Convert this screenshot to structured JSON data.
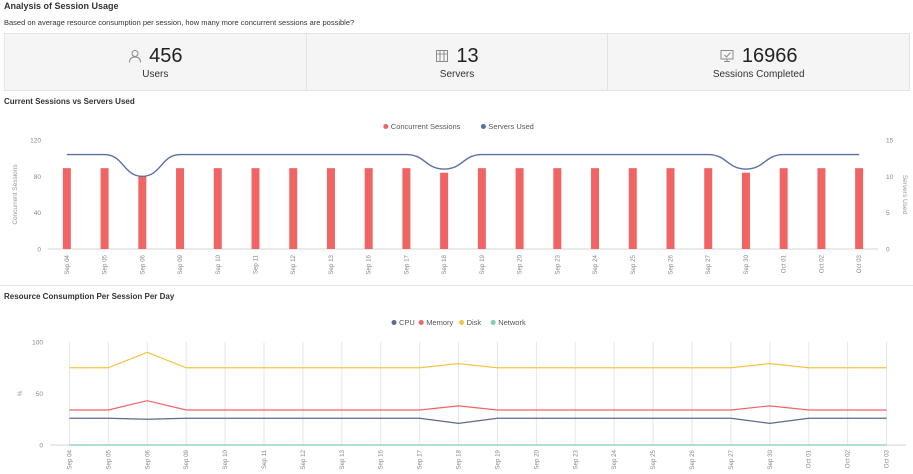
{
  "page": {
    "title": "Analysis of Session Usage",
    "subtitle": "Based on average resource consumption per session, how many more concurrent sessions are possible?"
  },
  "stats": [
    {
      "value": "456",
      "label": "Users",
      "icon": "user-icon"
    },
    {
      "value": "13",
      "label": "Servers",
      "icon": "server-icon"
    },
    {
      "value": "16966",
      "label": "Sessions Completed",
      "icon": "sessions-completed-icon"
    }
  ],
  "chart_data": [
    {
      "type": "bar",
      "title": "Current Sessions vs Servers Used",
      "categories": [
        "Sep 04",
        "Sep 05",
        "Sep 06",
        "Sep 09",
        "Sep 10",
        "Sep 11",
        "Sep 12",
        "Sep 13",
        "Sep 16",
        "Sep 17",
        "Sep 18",
        "Sep 19",
        "Sep 20",
        "Sep 23",
        "Sep 24",
        "Sep 25",
        "Sep 26",
        "Sep 27",
        "Sep 30",
        "Oct 01",
        "Oct 02",
        "Oct 03"
      ],
      "series": [
        {
          "name": "Concurrent Sessions",
          "type": "bar",
          "axis": "left",
          "color": "#f06464",
          "values": [
            89,
            89,
            80,
            89,
            89,
            89,
            89,
            89,
            89,
            89,
            84,
            89,
            89,
            89,
            89,
            89,
            89,
            89,
            84,
            89,
            89,
            89
          ]
        },
        {
          "name": "Servers Used",
          "type": "line",
          "axis": "right",
          "color": "#5b6fa8",
          "values": [
            13,
            13,
            10,
            13,
            13,
            13,
            13,
            13,
            13,
            13,
            11,
            13,
            13,
            13,
            13,
            13,
            13,
            13,
            11,
            13,
            13,
            13
          ]
        }
      ],
      "ylabel": "Concurrent Sessions",
      "ylabel_right": "Servers Used",
      "ylim": [
        0,
        120
      ],
      "ylim_right": [
        0,
        15
      ],
      "yticks": [
        "0",
        "40",
        "80",
        "120"
      ],
      "yticks_right": [
        "0",
        "5",
        "10",
        "15"
      ],
      "legend": "top-center",
      "grid": false
    },
    {
      "type": "line",
      "title": "Resource Consumption Per Session Per Day",
      "categories": [
        "Sep 04",
        "Sep 05",
        "Sep 06",
        "Sep 09",
        "Sep 10",
        "Sep 11",
        "Sep 12",
        "Sep 13",
        "Sep 16",
        "Sep 17",
        "Sep 18",
        "Sep 19",
        "Sep 20",
        "Sep 23",
        "Sep 24",
        "Sep 25",
        "Sep 26",
        "Sep 27",
        "Sep 30",
        "Oct 01",
        "Oct 02",
        "Oct 03"
      ],
      "series": [
        {
          "name": "CPU",
          "color": "#5b6a8c",
          "values": [
            26,
            26,
            25,
            26,
            26,
            26,
            26,
            26,
            26,
            26,
            21,
            26,
            26,
            26,
            26,
            26,
            26,
            26,
            21,
            26,
            26,
            26
          ]
        },
        {
          "name": "Memory",
          "color": "#f06464",
          "values": [
            34,
            34,
            43,
            34,
            34,
            34,
            34,
            34,
            34,
            34,
            38,
            34,
            34,
            34,
            34,
            34,
            34,
            34,
            38,
            34,
            34,
            34
          ]
        },
        {
          "name": "Disk",
          "color": "#f5c542",
          "values": [
            75,
            75,
            90,
            75,
            75,
            75,
            75,
            75,
            75,
            75,
            79,
            75,
            75,
            75,
            75,
            75,
            75,
            75,
            79,
            75,
            75,
            75
          ]
        },
        {
          "name": "Network",
          "color": "#7fcfb0",
          "values": [
            0,
            0,
            0,
            0,
            0,
            0,
            0,
            0,
            0,
            0,
            0,
            0,
            0,
            0,
            0,
            0,
            0,
            0,
            0,
            0,
            0,
            0
          ]
        }
      ],
      "ylabel": "%",
      "ylim": [
        0,
        100
      ],
      "yticks": [
        "0",
        "50",
        "100"
      ],
      "legend": "top-center",
      "grid": true
    }
  ]
}
